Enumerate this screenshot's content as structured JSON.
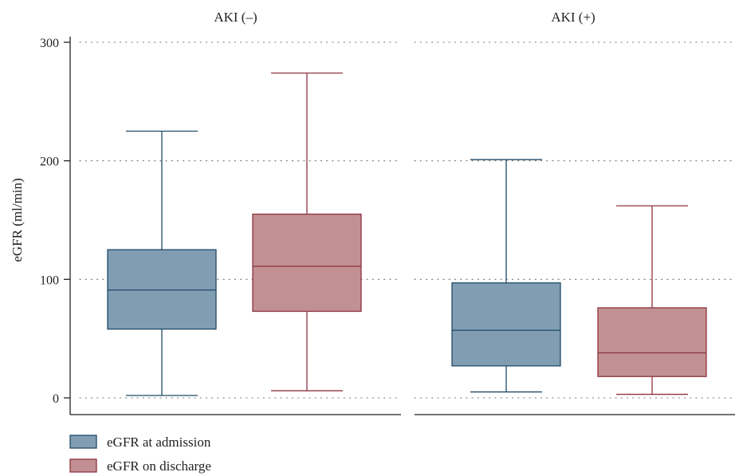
{
  "chart_data": {
    "type": "box",
    "ylabel": "eGFR (ml/min)",
    "ylim": [
      0,
      300
    ],
    "yticks": [
      0,
      100,
      200,
      300
    ],
    "grid": "horizontal-dotted",
    "legend_position": "bottom-left",
    "colors": {
      "admission_fill": "#819db2",
      "admission_stroke": "#1f4a68",
      "discharge_fill": "#c19092",
      "discharge_stroke": "#8e3440",
      "axis": "#222222",
      "grid": "#777777"
    },
    "series": [
      {
        "name": "eGFR at admission",
        "key": "admission"
      },
      {
        "name": "eGFR on discharge",
        "key": "discharge"
      }
    ],
    "panels": [
      {
        "title": "AKI (–)",
        "boxes": [
          {
            "series": "admission",
            "min": 2,
            "q1": 58,
            "median": 91,
            "q3": 125,
            "max": 225
          },
          {
            "series": "discharge",
            "min": 6,
            "q1": 73,
            "median": 111,
            "q3": 155,
            "max": 274
          }
        ]
      },
      {
        "title": "AKI (+)",
        "boxes": [
          {
            "series": "admission",
            "min": 5,
            "q1": 27,
            "median": 57,
            "q3": 97,
            "max": 201
          },
          {
            "series": "discharge",
            "min": 3,
            "q1": 18,
            "median": 38,
            "q3": 76,
            "max": 162
          }
        ]
      }
    ]
  }
}
